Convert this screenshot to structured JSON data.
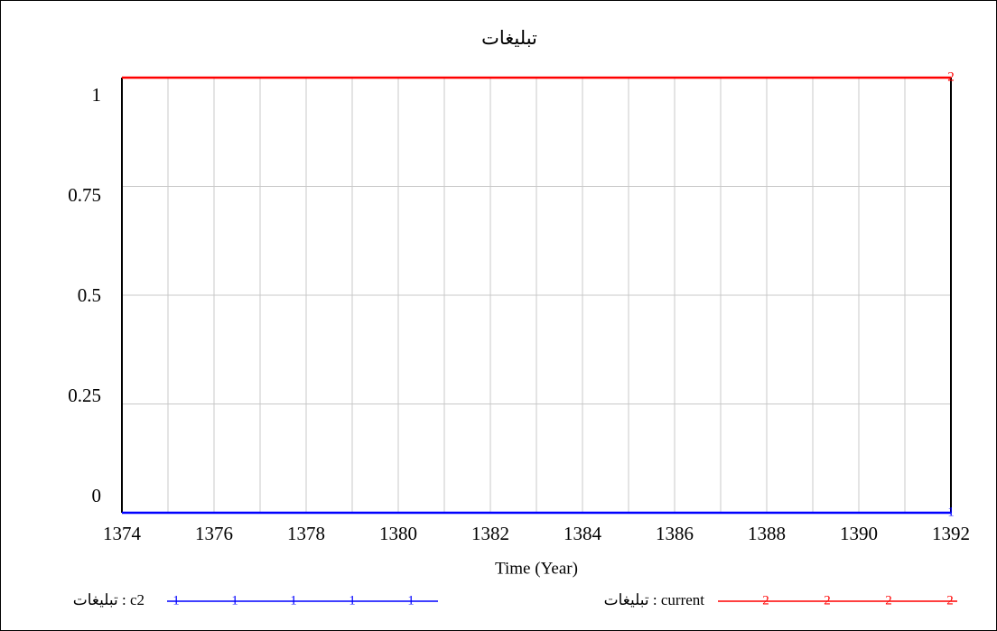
{
  "chart_data": {
    "type": "line",
    "title": "تبليغات",
    "x_label": "Time (Year)",
    "x": [
      1374,
      1392
    ],
    "series": [
      {
        "name": "تبليغات : c2",
        "marker_label": "1",
        "color": "#0000ff",
        "values": [
          0,
          0
        ]
      },
      {
        "name": "تبليغات : current",
        "marker_label": "2",
        "color": "#ff0000",
        "values": [
          1,
          1
        ]
      }
    ],
    "xlim": [
      1374,
      1392
    ],
    "xticks": [
      1374,
      1376,
      1378,
      1380,
      1382,
      1384,
      1386,
      1388,
      1390,
      1392
    ],
    "x_minor_ticks": [
      1375,
      1377,
      1379,
      1381,
      1383,
      1385,
      1387,
      1389,
      1391
    ],
    "ylim": [
      0,
      1
    ],
    "yticks": [
      0,
      0.25,
      0.5,
      0.75,
      1
    ],
    "grid": true
  }
}
